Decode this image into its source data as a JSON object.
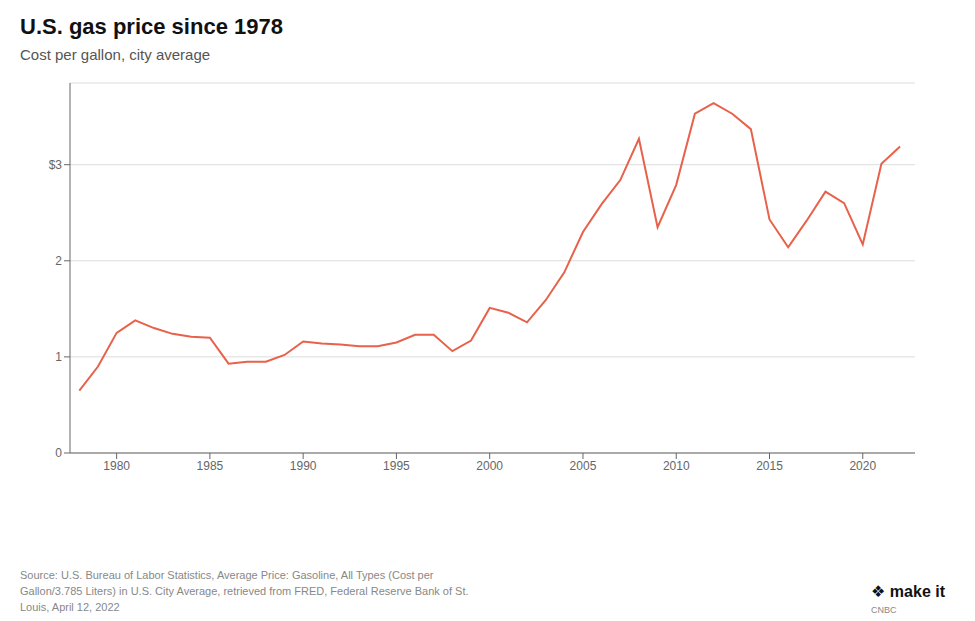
{
  "chart_data": {
    "type": "line",
    "title": "U.S. gas price since 1978",
    "subtitle": "Cost per gallon, city average",
    "annotations": [
      "Source: U.S. Bureau of Labor Statistics, Average Price: Gasoline, All Types (Cost per\nGallon/3.785 Liters) in U.S. City Average, retrieved from FRED, Federal Reserve Bank of St.\nLouis, April 12, 2022",
      "❖ make it",
      "CNBC"
    ],
    "x": [
      1978,
      1979,
      1980,
      1981,
      1982,
      1983,
      1984,
      1985,
      1986,
      1987,
      1988,
      1989,
      1990,
      1991,
      1992,
      1993,
      1994,
      1995,
      1996,
      1997,
      1998,
      1999,
      2000,
      2001,
      2002,
      2003,
      2004,
      2005,
      2006,
      2007,
      2008,
      2009,
      2010,
      2011,
      2012,
      2013,
      2014,
      2015,
      2016,
      2017,
      2018,
      2019,
      2020,
      2021,
      2022
    ],
    "values": [
      0.65,
      0.9,
      1.25,
      1.38,
      1.3,
      1.24,
      1.21,
      1.2,
      0.93,
      0.95,
      0.95,
      1.02,
      1.16,
      1.14,
      1.13,
      1.11,
      1.11,
      1.15,
      1.23,
      1.23,
      1.06,
      1.17,
      1.51,
      1.46,
      1.36,
      1.59,
      1.88,
      2.3,
      2.59,
      2.84,
      3.27,
      2.35,
      2.79,
      3.53,
      3.64,
      3.53,
      3.37,
      2.43,
      2.14,
      2.42,
      2.72,
      2.6,
      2.17,
      3.01,
      3.19
    ],
    "color": "#E8614A",
    "xlim": [
      1977.5,
      2022.8
    ],
    "xticks": [
      1980,
      1985,
      1990,
      1995,
      2000,
      2005,
      2010,
      2015,
      2020
    ],
    "ylim": [
      0,
      3.85
    ],
    "yticks": [
      0,
      1,
      2,
      {
        "value": 3,
        "label": "$3"
      }
    ],
    "grid": true
  }
}
